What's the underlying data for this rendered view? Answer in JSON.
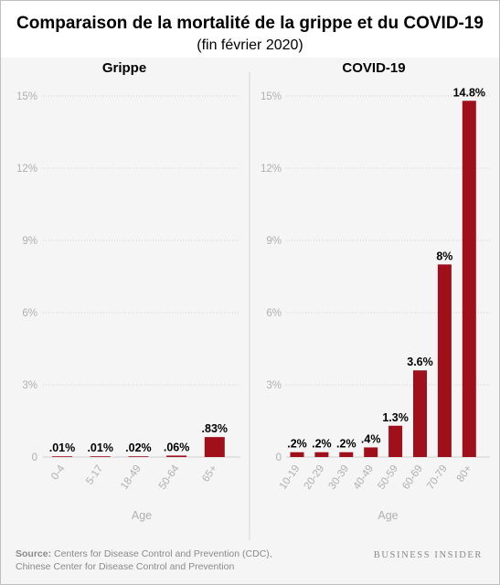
{
  "header": {
    "title": "Comparaison de la mortalité de la grippe et du COVID-19",
    "subtitle": "(fin février 2020)"
  },
  "footer": {
    "source_label": "Source:",
    "source_line1": " Centers for Disease Control and Prevention (CDC),",
    "source_line2": "Chinese Center for Disease Control and Prevention",
    "brand": "BUSINESS INSIDER"
  },
  "colors": {
    "bar": "#a0101a",
    "grid": "#d0d0d0",
    "axis_text": "#b0b0b0",
    "background": "#f5f5f5"
  },
  "chart_data": [
    {
      "type": "bar",
      "title": "Grippe",
      "xlabel": "Age",
      "ylabel": "",
      "ylim": [
        0,
        15
      ],
      "yticks": [
        0,
        3,
        6,
        9,
        12,
        15
      ],
      "ytick_labels": [
        "0",
        "3%",
        "6%",
        "9%",
        "12%",
        "15%"
      ],
      "categories": [
        "0-4",
        "5-17",
        "18-49",
        "50-64",
        "65+"
      ],
      "values": [
        0.01,
        0.01,
        0.02,
        0.06,
        0.83
      ],
      "labels": [
        ".01%",
        ".01%",
        ".02%",
        ".06%",
        ".83%"
      ],
      "grid": true
    },
    {
      "type": "bar",
      "title": "COVID-19",
      "xlabel": "Age",
      "ylabel": "",
      "ylim": [
        0,
        15
      ],
      "yticks": [
        0,
        3,
        6,
        9,
        12,
        15
      ],
      "ytick_labels": [
        "0",
        "3%",
        "6%",
        "9%",
        "12%",
        "15%"
      ],
      "categories": [
        "10-19",
        "20-29",
        "30-39",
        "40-49",
        "50-59",
        "60-69",
        "70-79",
        "80+"
      ],
      "values": [
        0.2,
        0.2,
        0.2,
        0.4,
        1.3,
        3.6,
        8,
        14.8
      ],
      "labels": [
        ".2%",
        ".2%",
        ".2%",
        ".4%",
        "1.3%",
        "3.6%",
        "8%",
        "14.8%"
      ],
      "grid": true
    }
  ]
}
